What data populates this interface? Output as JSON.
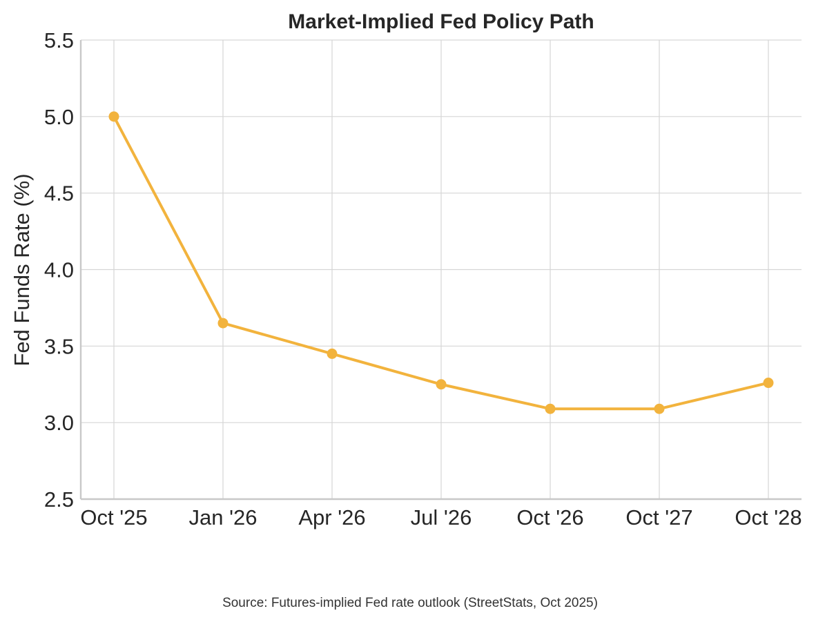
{
  "chart_data": {
    "type": "line",
    "title": "Market-Implied Fed Policy Path",
    "xlabel": "",
    "ylabel": "Fed Funds Rate (%)",
    "categories": [
      "Oct '25",
      "Jan '26",
      "Apr '26",
      "Jul '26",
      "Oct '26",
      "Oct '27",
      "Oct '28"
    ],
    "series": [
      {
        "name": "Fed Funds Rate",
        "values": [
          5.0,
          3.65,
          3.45,
          3.25,
          3.09,
          3.09,
          3.26
        ],
        "color": "#f2b33d"
      }
    ],
    "ylim": [
      2.5,
      5.5
    ],
    "yticks": [
      2.5,
      3.0,
      3.5,
      4.0,
      4.5,
      5.0,
      5.5
    ],
    "grid": true,
    "source_note": "Source: Futures-implied Fed rate outlook (StreetStats, Oct 2025)"
  }
}
